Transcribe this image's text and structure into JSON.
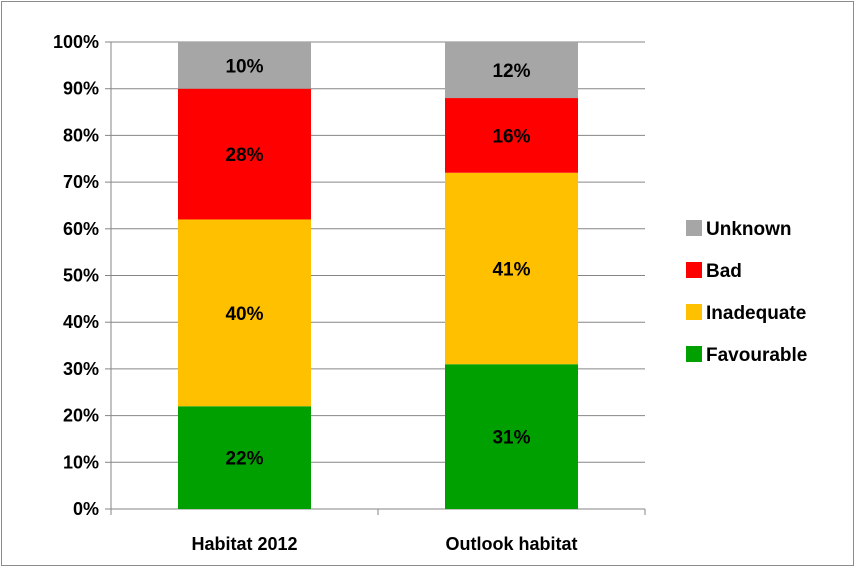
{
  "chart_data": {
    "type": "bar",
    "stacked": true,
    "categories": [
      "Habitat 2012",
      "Outlook habitat"
    ],
    "series": [
      {
        "name": "Favourable",
        "values": [
          22,
          31
        ],
        "labels": [
          "22%",
          "31%"
        ],
        "color": "#00a000"
      },
      {
        "name": "Inadequate",
        "values": [
          40,
          41
        ],
        "labels": [
          "40%",
          "41%"
        ],
        "color": "#ffc000"
      },
      {
        "name": "Bad",
        "values": [
          28,
          16
        ],
        "labels": [
          "28%",
          "16%"
        ],
        "color": "#ff0000"
      },
      {
        "name": "Unknown",
        "values": [
          10,
          12
        ],
        "labels": [
          "10%",
          "12%"
        ],
        "color": "#a6a6a6"
      }
    ],
    "ylim": [
      0,
      100
    ],
    "yticks": [
      "0%",
      "10%",
      "20%",
      "30%",
      "40%",
      "50%",
      "60%",
      "70%",
      "80%",
      "90%",
      "100%"
    ],
    "grid": true,
    "legend_position": "right",
    "legend_order": [
      "Unknown",
      "Bad",
      "Inadequate",
      "Favourable"
    ]
  }
}
